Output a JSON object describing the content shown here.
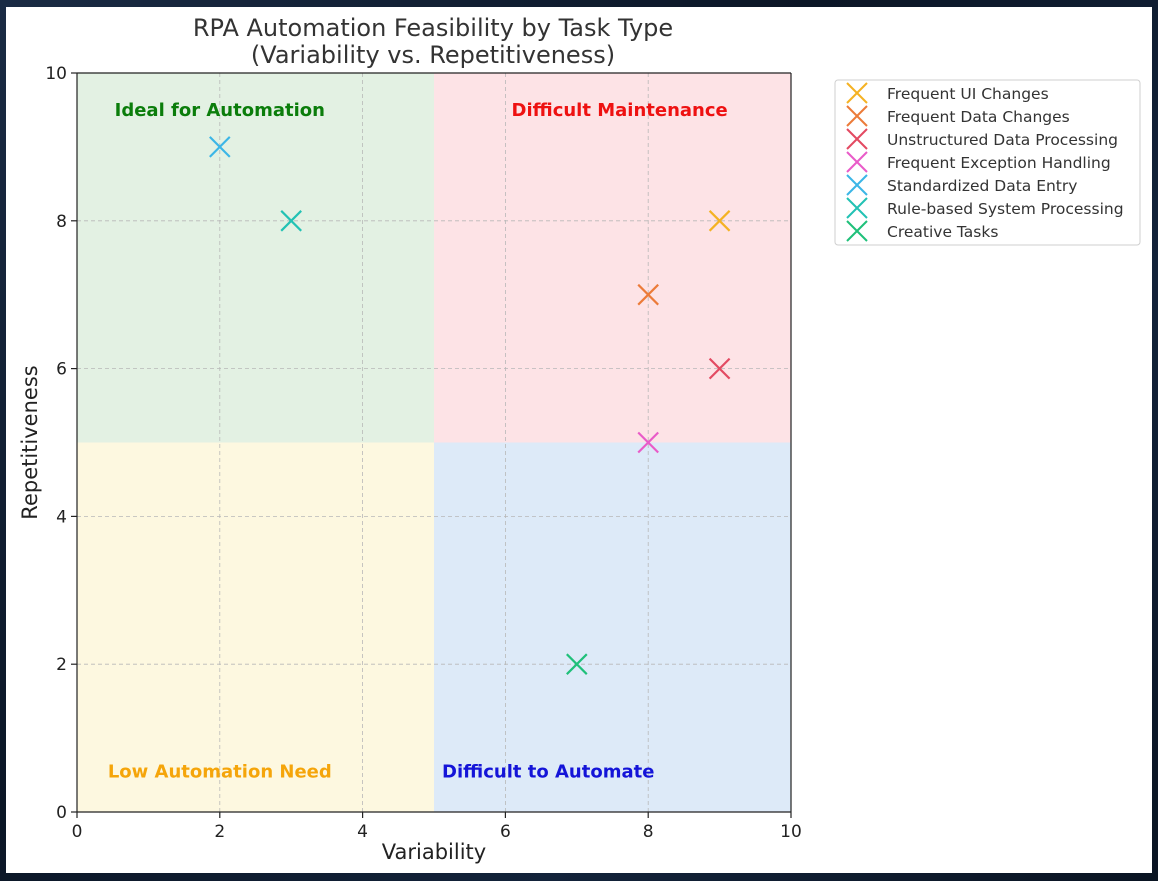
{
  "chart_data": {
    "type": "scatter",
    "title_lines": [
      "RPA Automation Feasibility by Task Type",
      "(Variability vs. Repetitiveness)"
    ],
    "xlabel": "Variability",
    "ylabel": "Repetitiveness",
    "xlim": [
      0,
      10
    ],
    "ylim": [
      0,
      10
    ],
    "xticks": [
      0,
      2,
      4,
      6,
      8,
      10
    ],
    "yticks": [
      0,
      2,
      4,
      6,
      8,
      10
    ],
    "grid": true,
    "marker": "x",
    "legend_position": "outside-top-right",
    "quadrants": [
      {
        "label": "Ideal for Automation",
        "x": [
          0,
          5
        ],
        "y": [
          5,
          10
        ],
        "fill": "#e3f1e3",
        "label_color": "#0b7d0b"
      },
      {
        "label": "Difficult Maintenance",
        "x": [
          5,
          10
        ],
        "y": [
          5,
          10
        ],
        "fill": "#fde3e6",
        "label_color": "#ee1111"
      },
      {
        "label": "Low Automation Need",
        "x": [
          0,
          5
        ],
        "y": [
          0,
          5
        ],
        "fill": "#fdf8e0",
        "label_color": "#f5a50a"
      },
      {
        "label": "Difficult to Automate",
        "x": [
          5,
          10
        ],
        "y": [
          0,
          5
        ],
        "fill": "#ddeaf8",
        "label_color": "#1414d8"
      }
    ],
    "series": [
      {
        "name": "Frequent UI Changes",
        "x": 9,
        "y": 8,
        "color": "#f4b223"
      },
      {
        "name": "Frequent Data Changes",
        "x": 8,
        "y": 7,
        "color": "#ec7b39"
      },
      {
        "name": "Unstructured Data Processing",
        "x": 9,
        "y": 6,
        "color": "#e34a62"
      },
      {
        "name": "Frequent Exception Handling",
        "x": 8,
        "y": 5,
        "color": "#e95bc8"
      },
      {
        "name": "Standardized Data Entry",
        "x": 2,
        "y": 9,
        "color": "#3cb6e6"
      },
      {
        "name": "Rule-based System Processing",
        "x": 3,
        "y": 8,
        "color": "#22c2b4"
      },
      {
        "name": "Creative Tasks",
        "x": 7,
        "y": 2,
        "color": "#1fc07a"
      }
    ]
  }
}
